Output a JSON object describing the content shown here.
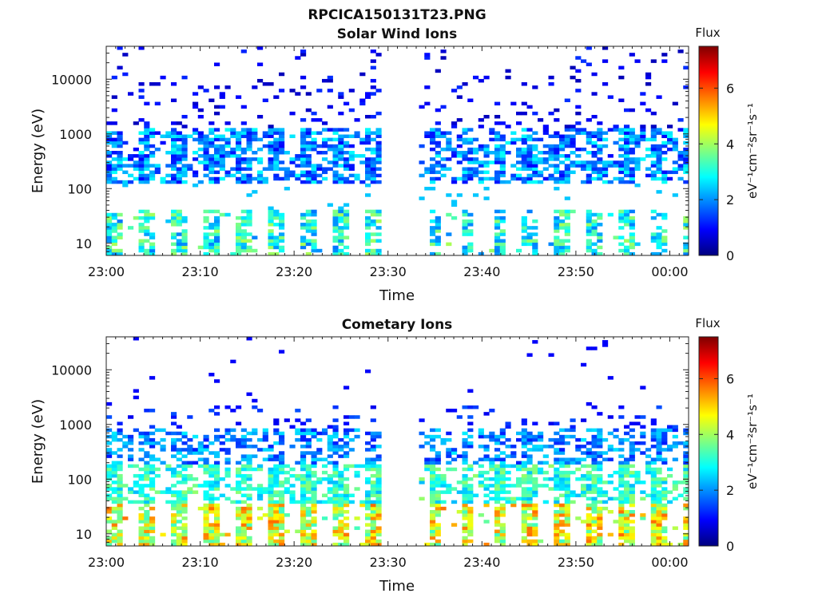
{
  "figure_title": "RPCICA150131T23.PNG",
  "colormap": [
    "#00007f",
    "#0000ff",
    "#007fff",
    "#00ffff",
    "#7fff7f",
    "#ffff00",
    "#ff7f00",
    "#ff0000",
    "#7f0000"
  ],
  "chart_data": [
    {
      "type": "heatmap",
      "title": "Solar Wind Ions",
      "xlabel": "Time",
      "ylabel": "Energy (eV)",
      "x_tick_labels": [
        "23:00",
        "23:10",
        "23:20",
        "23:30",
        "23:40",
        "23:50",
        "00:00"
      ],
      "x_range_minutes": [
        0,
        62
      ],
      "y_scale": "log",
      "ylim": [
        6,
        40000
      ],
      "y_ticks": [
        10,
        100,
        1000,
        10000
      ],
      "y_tick_labels": [
        "10",
        "100",
        "1000",
        "10000"
      ],
      "colorbar": {
        "title": "Flux",
        "label": "eV⁻¹cm⁻²sr⁻¹s⁻¹",
        "range": [
          0,
          7.5
        ],
        "ticks": [
          0,
          2,
          4,
          6
        ],
        "tick_labels": [
          "0",
          "2",
          "4",
          "6"
        ]
      },
      "data_gap_minutes": [
        29,
        33
      ],
      "profile": "solar"
    },
    {
      "type": "heatmap",
      "title": "Cometary Ions",
      "xlabel": "Time",
      "ylabel": "Energy (eV)",
      "x_tick_labels": [
        "23:00",
        "23:10",
        "23:20",
        "23:30",
        "23:40",
        "23:50",
        "00:00"
      ],
      "x_range_minutes": [
        0,
        62
      ],
      "y_scale": "log",
      "ylim": [
        6,
        40000
      ],
      "y_ticks": [
        10,
        100,
        1000,
        10000
      ],
      "y_tick_labels": [
        "10",
        "100",
        "1000",
        "10000"
      ],
      "colorbar": {
        "title": "Flux",
        "label": "eV⁻¹cm⁻²sr⁻¹s⁻¹",
        "range": [
          0,
          7.5
        ],
        "ticks": [
          0,
          2,
          4,
          6
        ],
        "tick_labels": [
          "0",
          "2",
          "4",
          "6"
        ]
      },
      "data_gap_minutes": [
        29,
        33
      ],
      "profile": "cometary"
    }
  ]
}
